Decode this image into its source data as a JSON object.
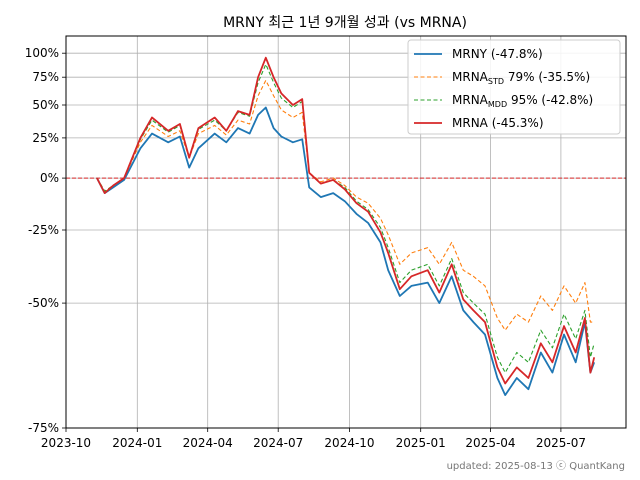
{
  "chart_data": {
    "type": "line",
    "title": "MRNY 최근 1년 9개월 성과 (vs MRNA)",
    "xlabel": "",
    "ylabel": "",
    "y_scale": "log(1+r)",
    "ylim": [
      -0.75,
      1.2
    ],
    "xlim": [
      "2023-10-01",
      "2025-09-23"
    ],
    "x_ticks": [
      "2023-10",
      "2024-01",
      "2024-04",
      "2024-07",
      "2024-10",
      "2025-01",
      "2025-04",
      "2025-07"
    ],
    "x_tick_dates": [
      "2023-10-01",
      "2024-01-01",
      "2024-04-01",
      "2024-07-01",
      "2024-10-01",
      "2025-01-01",
      "2025-04-01",
      "2025-07-01"
    ],
    "y_ticks": [
      -0.75,
      -0.5,
      -0.25,
      0,
      0.25,
      0.5,
      0.75,
      1.0
    ],
    "y_tick_labels": [
      "-75%",
      "-50%",
      "-25%",
      "0%",
      "25%",
      "50%",
      "75%",
      "100%"
    ],
    "grid": true,
    "legend_position": "top-right",
    "zero_line_color": "#d62728",
    "series": [
      {
        "legend_main": "MRNY (-47.8%)",
        "legend_sub": "",
        "legend_tail": "",
        "color": "#1f77b4",
        "dash": false,
        "points": [
          [
            "2023-11-10",
            0.0
          ],
          [
            "2023-11-20",
            -0.08
          ],
          [
            "2023-12-01",
            -0.05
          ],
          [
            "2023-12-15",
            -0.01
          ],
          [
            "2024-01-05",
            0.18
          ],
          [
            "2024-01-20",
            0.28
          ],
          [
            "2024-02-10",
            0.22
          ],
          [
            "2024-02-25",
            0.26
          ],
          [
            "2024-03-08",
            0.06
          ],
          [
            "2024-03-20",
            0.18
          ],
          [
            "2024-04-10",
            0.28
          ],
          [
            "2024-04-25",
            0.22
          ],
          [
            "2024-05-10",
            0.32
          ],
          [
            "2024-05-25",
            0.28
          ],
          [
            "2024-06-05",
            0.42
          ],
          [
            "2024-06-15",
            0.48
          ],
          [
            "2024-06-25",
            0.32
          ],
          [
            "2024-07-05",
            0.26
          ],
          [
            "2024-07-20",
            0.22
          ],
          [
            "2024-08-01",
            0.24
          ],
          [
            "2024-08-10",
            -0.05
          ],
          [
            "2024-08-25",
            -0.1
          ],
          [
            "2024-09-10",
            -0.08
          ],
          [
            "2024-09-25",
            -0.12
          ],
          [
            "2024-10-10",
            -0.18
          ],
          [
            "2024-10-25",
            -0.22
          ],
          [
            "2024-11-10",
            -0.3
          ],
          [
            "2024-11-20",
            -0.4
          ],
          [
            "2024-12-05",
            -0.48
          ],
          [
            "2024-12-20",
            -0.45
          ],
          [
            "2025-01-10",
            -0.44
          ],
          [
            "2025-01-25",
            -0.5
          ],
          [
            "2025-02-10",
            -0.42
          ],
          [
            "2025-02-25",
            -0.52
          ],
          [
            "2025-03-10",
            -0.55
          ],
          [
            "2025-03-25",
            -0.58
          ],
          [
            "2025-04-10",
            -0.67
          ],
          [
            "2025-04-20",
            -0.7
          ],
          [
            "2025-05-05",
            -0.67
          ],
          [
            "2025-05-20",
            -0.69
          ],
          [
            "2025-06-05",
            -0.62
          ],
          [
            "2025-06-20",
            -0.66
          ],
          [
            "2025-07-05",
            -0.58
          ],
          [
            "2025-07-20",
            -0.64
          ],
          [
            "2025-08-01",
            -0.55
          ],
          [
            "2025-08-08",
            -0.66
          ],
          [
            "2025-08-13",
            -0.64
          ]
        ]
      },
      {
        "legend_main": "MRNA",
        "legend_sub": "STD",
        "legend_tail": " 79% (-35.5%)",
        "color": "#ff7f0e",
        "dash": true,
        "points": [
          [
            "2023-11-10",
            0.0
          ],
          [
            "2023-11-20",
            -0.07
          ],
          [
            "2023-12-01",
            -0.04
          ],
          [
            "2023-12-15",
            0.0
          ],
          [
            "2024-01-05",
            0.22
          ],
          [
            "2024-01-20",
            0.34
          ],
          [
            "2024-02-10",
            0.26
          ],
          [
            "2024-02-25",
            0.3
          ],
          [
            "2024-03-08",
            0.12
          ],
          [
            "2024-03-20",
            0.28
          ],
          [
            "2024-04-10",
            0.34
          ],
          [
            "2024-04-25",
            0.27
          ],
          [
            "2024-05-10",
            0.38
          ],
          [
            "2024-05-25",
            0.35
          ],
          [
            "2024-06-05",
            0.58
          ],
          [
            "2024-06-15",
            0.72
          ],
          [
            "2024-06-25",
            0.58
          ],
          [
            "2024-07-05",
            0.46
          ],
          [
            "2024-07-20",
            0.4
          ],
          [
            "2024-08-01",
            0.44
          ],
          [
            "2024-08-10",
            0.03
          ],
          [
            "2024-08-25",
            -0.02
          ],
          [
            "2024-09-10",
            0.0
          ],
          [
            "2024-09-25",
            -0.04
          ],
          [
            "2024-10-10",
            -0.1
          ],
          [
            "2024-10-25",
            -0.13
          ],
          [
            "2024-11-10",
            -0.2
          ],
          [
            "2024-11-20",
            -0.27
          ],
          [
            "2024-12-05",
            -0.38
          ],
          [
            "2024-12-20",
            -0.34
          ],
          [
            "2025-01-10",
            -0.32
          ],
          [
            "2025-01-25",
            -0.38
          ],
          [
            "2025-02-10",
            -0.3
          ],
          [
            "2025-02-25",
            -0.4
          ],
          [
            "2025-03-10",
            -0.42
          ],
          [
            "2025-03-25",
            -0.45
          ],
          [
            "2025-04-10",
            -0.54
          ],
          [
            "2025-04-20",
            -0.57
          ],
          [
            "2025-05-05",
            -0.53
          ],
          [
            "2025-05-20",
            -0.55
          ],
          [
            "2025-06-05",
            -0.48
          ],
          [
            "2025-06-20",
            -0.52
          ],
          [
            "2025-07-05",
            -0.45
          ],
          [
            "2025-07-20",
            -0.5
          ],
          [
            "2025-08-01",
            -0.44
          ],
          [
            "2025-08-08",
            -0.55
          ],
          [
            "2025-08-13",
            -0.55
          ]
        ]
      },
      {
        "legend_main": "MRNA",
        "legend_sub": "MDD",
        "legend_tail": " 95% (-42.8%)",
        "color": "#2ca02c",
        "dash": true,
        "points": [
          [
            "2023-11-10",
            0.0
          ],
          [
            "2023-11-20",
            -0.07
          ],
          [
            "2023-12-01",
            -0.04
          ],
          [
            "2023-12-15",
            0.0
          ],
          [
            "2024-01-05",
            0.24
          ],
          [
            "2024-01-20",
            0.38
          ],
          [
            "2024-02-10",
            0.29
          ],
          [
            "2024-02-25",
            0.34
          ],
          [
            "2024-03-08",
            0.12
          ],
          [
            "2024-03-20",
            0.31
          ],
          [
            "2024-04-10",
            0.38
          ],
          [
            "2024-04-25",
            0.3
          ],
          [
            "2024-05-10",
            0.44
          ],
          [
            "2024-05-25",
            0.41
          ],
          [
            "2024-06-05",
            0.7
          ],
          [
            "2024-06-15",
            0.88
          ],
          [
            "2024-06-25",
            0.7
          ],
          [
            "2024-07-05",
            0.56
          ],
          [
            "2024-07-20",
            0.48
          ],
          [
            "2024-08-01",
            0.53
          ],
          [
            "2024-08-10",
            0.03
          ],
          [
            "2024-08-25",
            -0.03
          ],
          [
            "2024-09-10",
            -0.01
          ],
          [
            "2024-09-25",
            -0.05
          ],
          [
            "2024-10-10",
            -0.12
          ],
          [
            "2024-10-25",
            -0.16
          ],
          [
            "2024-11-10",
            -0.24
          ],
          [
            "2024-11-20",
            -0.32
          ],
          [
            "2024-12-05",
            -0.44
          ],
          [
            "2024-12-20",
            -0.4
          ],
          [
            "2025-01-10",
            -0.38
          ],
          [
            "2025-01-25",
            -0.45
          ],
          [
            "2025-02-10",
            -0.36
          ],
          [
            "2025-02-25",
            -0.47
          ],
          [
            "2025-03-10",
            -0.5
          ],
          [
            "2025-03-25",
            -0.53
          ],
          [
            "2025-04-10",
            -0.63
          ],
          [
            "2025-04-20",
            -0.66
          ],
          [
            "2025-05-05",
            -0.62
          ],
          [
            "2025-05-20",
            -0.64
          ],
          [
            "2025-06-05",
            -0.57
          ],
          [
            "2025-06-20",
            -0.61
          ],
          [
            "2025-07-05",
            -0.53
          ],
          [
            "2025-07-20",
            -0.59
          ],
          [
            "2025-08-01",
            -0.52
          ],
          [
            "2025-08-08",
            -0.63
          ],
          [
            "2025-08-13",
            -0.6
          ]
        ]
      },
      {
        "legend_main": "MRNA (-45.3%)",
        "legend_sub": "",
        "legend_tail": "",
        "color": "#d62728",
        "dash": false,
        "points": [
          [
            "2023-11-10",
            0.0
          ],
          [
            "2023-11-20",
            -0.08
          ],
          [
            "2023-12-01",
            -0.04
          ],
          [
            "2023-12-15",
            0.0
          ],
          [
            "2024-01-05",
            0.25
          ],
          [
            "2024-01-20",
            0.4
          ],
          [
            "2024-02-10",
            0.3
          ],
          [
            "2024-02-25",
            0.35
          ],
          [
            "2024-03-08",
            0.12
          ],
          [
            "2024-03-20",
            0.32
          ],
          [
            "2024-04-10",
            0.4
          ],
          [
            "2024-04-25",
            0.3
          ],
          [
            "2024-05-10",
            0.45
          ],
          [
            "2024-05-25",
            0.42
          ],
          [
            "2024-06-05",
            0.75
          ],
          [
            "2024-06-15",
            0.95
          ],
          [
            "2024-06-25",
            0.75
          ],
          [
            "2024-07-05",
            0.6
          ],
          [
            "2024-07-20",
            0.5
          ],
          [
            "2024-08-01",
            0.55
          ],
          [
            "2024-08-10",
            0.03
          ],
          [
            "2024-08-25",
            -0.03
          ],
          [
            "2024-09-10",
            -0.01
          ],
          [
            "2024-09-25",
            -0.06
          ],
          [
            "2024-10-10",
            -0.13
          ],
          [
            "2024-10-25",
            -0.17
          ],
          [
            "2024-11-10",
            -0.26
          ],
          [
            "2024-11-20",
            -0.34
          ],
          [
            "2024-12-05",
            -0.46
          ],
          [
            "2024-12-20",
            -0.42
          ],
          [
            "2025-01-10",
            -0.4
          ],
          [
            "2025-01-25",
            -0.47
          ],
          [
            "2025-02-10",
            -0.38
          ],
          [
            "2025-02-25",
            -0.49
          ],
          [
            "2025-03-10",
            -0.52
          ],
          [
            "2025-03-25",
            -0.55
          ],
          [
            "2025-04-10",
            -0.65
          ],
          [
            "2025-04-20",
            -0.68
          ],
          [
            "2025-05-05",
            -0.65
          ],
          [
            "2025-05-20",
            -0.67
          ],
          [
            "2025-06-05",
            -0.6
          ],
          [
            "2025-06-20",
            -0.64
          ],
          [
            "2025-07-05",
            -0.56
          ],
          [
            "2025-07-20",
            -0.62
          ],
          [
            "2025-08-01",
            -0.54
          ],
          [
            "2025-08-08",
            -0.66
          ],
          [
            "2025-08-13",
            -0.63
          ]
        ]
      }
    ]
  },
  "footer": "updated: 2025-08-13 ⓒ QuantKang"
}
